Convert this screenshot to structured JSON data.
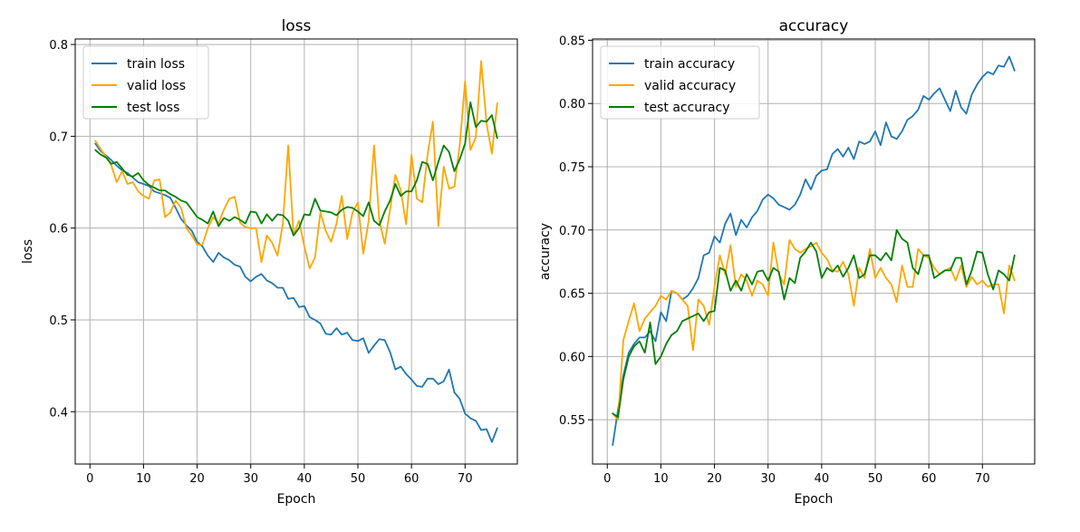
{
  "chart_data": [
    {
      "type": "line",
      "title": "loss",
      "xlabel": "Epoch",
      "ylabel": "loss",
      "xlim": [
        -2.75,
        79.75
      ],
      "ylim": [
        0.343,
        0.806
      ],
      "xticks": [
        0,
        10,
        20,
        30,
        40,
        50,
        60,
        70
      ],
      "yticks": [
        0.4,
        0.5,
        0.6,
        0.7,
        0.8
      ],
      "grid": true,
      "legend": "upper-left",
      "series": [
        {
          "name": "train loss",
          "color": "#1f77b4",
          "x": [
            1,
            2,
            3,
            4,
            5,
            6,
            7,
            8,
            9,
            10,
            11,
            12,
            13,
            14,
            15,
            16,
            17,
            18,
            19,
            20,
            21,
            22,
            23,
            24,
            25,
            26,
            27,
            28,
            29,
            30,
            31,
            32,
            33,
            34,
            35,
            36,
            37,
            38,
            39,
            40,
            41,
            42,
            43,
            44,
            45,
            46,
            47,
            48,
            49,
            50,
            51,
            52,
            53,
            54,
            55,
            56,
            57,
            58,
            59,
            60,
            61,
            62,
            63,
            64,
            65,
            66,
            67,
            68,
            69,
            70,
            71,
            72,
            73,
            74,
            75,
            76
          ],
          "values": [
            0.692,
            0.684,
            0.679,
            0.674,
            0.668,
            0.663,
            0.66,
            0.655,
            0.65,
            0.648,
            0.646,
            0.64,
            0.638,
            0.636,
            0.633,
            0.622,
            0.61,
            0.603,
            0.597,
            0.585,
            0.58,
            0.57,
            0.563,
            0.573,
            0.568,
            0.565,
            0.56,
            0.558,
            0.547,
            0.542,
            0.547,
            0.55,
            0.543,
            0.54,
            0.535,
            0.535,
            0.523,
            0.524,
            0.514,
            0.515,
            0.503,
            0.5,
            0.496,
            0.485,
            0.484,
            0.491,
            0.484,
            0.486,
            0.478,
            0.477,
            0.48,
            0.464,
            0.472,
            0.479,
            0.478,
            0.465,
            0.446,
            0.449,
            0.441,
            0.435,
            0.428,
            0.427,
            0.436,
            0.436,
            0.43,
            0.433,
            0.446,
            0.421,
            0.414,
            0.398,
            0.393,
            0.39,
            0.38,
            0.381,
            0.367,
            0.382
          ]
        },
        {
          "name": "valid loss",
          "color": "#ffa500",
          "x": [
            1,
            2,
            3,
            4,
            5,
            6,
            7,
            8,
            9,
            10,
            11,
            12,
            13,
            14,
            15,
            16,
            17,
            18,
            19,
            20,
            21,
            22,
            23,
            24,
            25,
            26,
            27,
            28,
            29,
            30,
            31,
            32,
            33,
            34,
            35,
            36,
            37,
            38,
            39,
            40,
            41,
            42,
            43,
            44,
            45,
            46,
            47,
            48,
            49,
            50,
            51,
            52,
            53,
            54,
            55,
            56,
            57,
            58,
            59,
            60,
            61,
            62,
            63,
            64,
            65,
            66,
            67,
            68,
            69,
            70,
            71,
            72,
            73,
            74,
            75,
            76
          ],
          "values": [
            0.695,
            0.686,
            0.678,
            0.668,
            0.65,
            0.662,
            0.648,
            0.65,
            0.64,
            0.635,
            0.632,
            0.652,
            0.653,
            0.612,
            0.617,
            0.63,
            0.622,
            0.6,
            0.592,
            0.582,
            0.582,
            0.6,
            0.612,
            0.605,
            0.62,
            0.632,
            0.634,
            0.606,
            0.601,
            0.6,
            0.6,
            0.563,
            0.592,
            0.584,
            0.57,
            0.605,
            0.69,
            0.592,
            0.608,
            0.58,
            0.556,
            0.568,
            0.617,
            0.597,
            0.585,
            0.605,
            0.635,
            0.588,
            0.617,
            0.628,
            0.572,
            0.608,
            0.69,
            0.608,
            0.583,
            0.62,
            0.658,
            0.641,
            0.604,
            0.68,
            0.632,
            0.628,
            0.68,
            0.716,
            0.602,
            0.667,
            0.643,
            0.645,
            0.69,
            0.76,
            0.685,
            0.699,
            0.782,
            0.714,
            0.681,
            0.736
          ]
        },
        {
          "name": "test loss",
          "color": "#008000",
          "x": [
            1,
            2,
            3,
            4,
            5,
            6,
            7,
            8,
            9,
            10,
            11,
            12,
            13,
            14,
            15,
            16,
            17,
            18,
            19,
            20,
            21,
            22,
            23,
            24,
            25,
            26,
            27,
            28,
            29,
            30,
            31,
            32,
            33,
            34,
            35,
            36,
            37,
            38,
            39,
            40,
            41,
            42,
            43,
            44,
            45,
            46,
            47,
            48,
            49,
            50,
            51,
            52,
            53,
            54,
            55,
            56,
            57,
            58,
            59,
            60,
            61,
            62,
            63,
            64,
            65,
            66,
            67,
            68,
            69,
            70,
            71,
            72,
            73,
            74,
            75,
            76
          ],
          "values": [
            0.685,
            0.68,
            0.677,
            0.67,
            0.672,
            0.665,
            0.658,
            0.656,
            0.66,
            0.652,
            0.647,
            0.644,
            0.641,
            0.641,
            0.637,
            0.634,
            0.63,
            0.628,
            0.62,
            0.612,
            0.609,
            0.605,
            0.618,
            0.602,
            0.611,
            0.608,
            0.612,
            0.609,
            0.605,
            0.618,
            0.617,
            0.605,
            0.615,
            0.608,
            0.615,
            0.614,
            0.608,
            0.592,
            0.6,
            0.615,
            0.614,
            0.632,
            0.619,
            0.618,
            0.617,
            0.614,
            0.62,
            0.623,
            0.622,
            0.618,
            0.613,
            0.628,
            0.608,
            0.603,
            0.618,
            0.63,
            0.648,
            0.635,
            0.64,
            0.64,
            0.652,
            0.672,
            0.67,
            0.652,
            0.672,
            0.69,
            0.683,
            0.662,
            0.675,
            0.692,
            0.737,
            0.71,
            0.717,
            0.716,
            0.723,
            0.698
          ]
        }
      ]
    },
    {
      "type": "line",
      "title": "accuracy",
      "xlabel": "Epoch",
      "ylabel": "accuracy",
      "xlim": [
        -2.75,
        79.75
      ],
      "ylim": [
        0.515,
        0.851
      ],
      "xticks": [
        0,
        10,
        20,
        30,
        40,
        50,
        60,
        70
      ],
      "yticks": [
        0.55,
        0.6,
        0.65,
        0.7,
        0.75,
        0.8,
        0.85
      ],
      "grid": true,
      "legend": "upper-left",
      "series": [
        {
          "name": "train accuracy",
          "color": "#1f77b4",
          "x": [
            1,
            2,
            3,
            4,
            5,
            6,
            7,
            8,
            9,
            10,
            11,
            12,
            13,
            14,
            15,
            16,
            17,
            18,
            19,
            20,
            21,
            22,
            23,
            24,
            25,
            26,
            27,
            28,
            29,
            30,
            31,
            32,
            33,
            34,
            35,
            36,
            37,
            38,
            39,
            40,
            41,
            42,
            43,
            44,
            45,
            46,
            47,
            48,
            49,
            50,
            51,
            52,
            53,
            54,
            55,
            56,
            57,
            58,
            59,
            60,
            61,
            62,
            63,
            64,
            65,
            66,
            67,
            68,
            69,
            70,
            71,
            72,
            73,
            74,
            75,
            76
          ],
          "values": [
            0.53,
            0.558,
            0.585,
            0.603,
            0.61,
            0.615,
            0.615,
            0.62,
            0.612,
            0.635,
            0.628,
            0.652,
            0.65,
            0.645,
            0.648,
            0.654,
            0.662,
            0.68,
            0.682,
            0.695,
            0.69,
            0.705,
            0.713,
            0.696,
            0.708,
            0.702,
            0.71,
            0.715,
            0.724,
            0.728,
            0.725,
            0.72,
            0.718,
            0.716,
            0.72,
            0.728,
            0.74,
            0.732,
            0.743,
            0.747,
            0.748,
            0.76,
            0.764,
            0.758,
            0.765,
            0.756,
            0.77,
            0.768,
            0.77,
            0.778,
            0.767,
            0.785,
            0.774,
            0.772,
            0.778,
            0.787,
            0.79,
            0.795,
            0.806,
            0.803,
            0.808,
            0.812,
            0.803,
            0.794,
            0.81,
            0.797,
            0.792,
            0.807,
            0.815,
            0.821,
            0.825,
            0.823,
            0.83,
            0.829,
            0.837,
            0.826
          ]
        },
        {
          "name": "valid accuracy",
          "color": "#ffa500",
          "x": [
            1,
            2,
            3,
            4,
            5,
            6,
            7,
            8,
            9,
            10,
            11,
            12,
            13,
            14,
            15,
            16,
            17,
            18,
            19,
            20,
            21,
            22,
            23,
            24,
            25,
            26,
            27,
            28,
            29,
            30,
            31,
            32,
            33,
            34,
            35,
            36,
            37,
            38,
            39,
            40,
            41,
            42,
            43,
            44,
            45,
            46,
            47,
            48,
            49,
            50,
            51,
            52,
            53,
            54,
            55,
            56,
            57,
            58,
            59,
            60,
            61,
            62,
            63,
            64,
            65,
            66,
            67,
            68,
            69,
            70,
            71,
            72,
            73,
            74,
            75,
            76
          ],
          "values": [
            0.555,
            0.55,
            0.613,
            0.628,
            0.642,
            0.62,
            0.63,
            0.635,
            0.64,
            0.648,
            0.645,
            0.652,
            0.65,
            0.645,
            0.64,
            0.605,
            0.645,
            0.64,
            0.625,
            0.655,
            0.68,
            0.665,
            0.688,
            0.655,
            0.665,
            0.66,
            0.648,
            0.66,
            0.657,
            0.648,
            0.69,
            0.665,
            0.657,
            0.692,
            0.685,
            0.682,
            0.685,
            0.687,
            0.69,
            0.682,
            0.677,
            0.668,
            0.667,
            0.675,
            0.665,
            0.64,
            0.67,
            0.662,
            0.685,
            0.662,
            0.67,
            0.662,
            0.657,
            0.643,
            0.672,
            0.655,
            0.655,
            0.685,
            0.68,
            0.678,
            0.67,
            0.665,
            0.668,
            0.67,
            0.66,
            0.672,
            0.655,
            0.663,
            0.657,
            0.66,
            0.655,
            0.657,
            0.657,
            0.634,
            0.672,
            0.66
          ]
        },
        {
          "name": "test accuracy",
          "color": "#008000",
          "x": [
            1,
            2,
            3,
            4,
            5,
            6,
            7,
            8,
            9,
            10,
            11,
            12,
            13,
            14,
            15,
            16,
            17,
            18,
            19,
            20,
            21,
            22,
            23,
            24,
            25,
            26,
            27,
            28,
            29,
            30,
            31,
            32,
            33,
            34,
            35,
            36,
            37,
            38,
            39,
            40,
            41,
            42,
            43,
            44,
            45,
            46,
            47,
            48,
            49,
            50,
            51,
            52,
            53,
            54,
            55,
            56,
            57,
            58,
            59,
            60,
            61,
            62,
            63,
            64,
            65,
            66,
            67,
            68,
            69,
            70,
            71,
            72,
            73,
            74,
            75,
            76
          ],
          "values": [
            0.555,
            0.552,
            0.582,
            0.6,
            0.608,
            0.612,
            0.603,
            0.627,
            0.594,
            0.6,
            0.61,
            0.617,
            0.62,
            0.628,
            0.63,
            0.632,
            0.634,
            0.628,
            0.635,
            0.636,
            0.67,
            0.668,
            0.652,
            0.66,
            0.652,
            0.665,
            0.657,
            0.667,
            0.668,
            0.66,
            0.67,
            0.667,
            0.645,
            0.662,
            0.658,
            0.678,
            0.683,
            0.69,
            0.683,
            0.662,
            0.67,
            0.667,
            0.672,
            0.663,
            0.67,
            0.68,
            0.662,
            0.665,
            0.68,
            0.68,
            0.676,
            0.682,
            0.676,
            0.7,
            0.693,
            0.69,
            0.67,
            0.665,
            0.68,
            0.68,
            0.662,
            0.665,
            0.668,
            0.668,
            0.678,
            0.678,
            0.657,
            0.668,
            0.683,
            0.682,
            0.665,
            0.653,
            0.668,
            0.665,
            0.66,
            0.68
          ]
        }
      ]
    }
  ]
}
